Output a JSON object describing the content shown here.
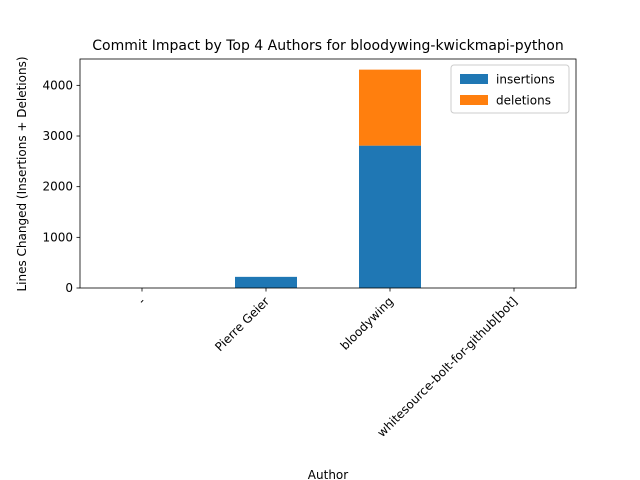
{
  "chart_data": {
    "type": "bar",
    "stacked": true,
    "title": "Commit Impact by Top 4 Authors for bloodywing-kwickmapi-python",
    "xlabel": "Author",
    "ylabel": "Lines Changed (Insertions + Deletions)",
    "categories": [
      "-",
      "Pierre Geier",
      "bloodywing",
      "whitesource-bolt-for-github[bot]"
    ],
    "series": [
      {
        "name": "insertions",
        "color": "#1f77b4",
        "values": [
          0,
          220,
          2810,
          0
        ]
      },
      {
        "name": "deletions",
        "color": "#ff7f0e",
        "values": [
          0,
          0,
          1500,
          0
        ]
      }
    ],
    "ylim": [
      0,
      4520
    ],
    "yticks": [
      0,
      1000,
      2000,
      3000,
      4000
    ],
    "grid": false,
    "legend_position": "top-right"
  }
}
